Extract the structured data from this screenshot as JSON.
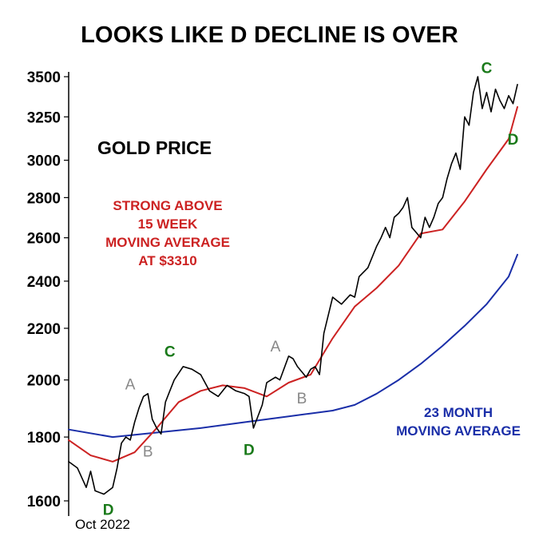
{
  "chart_data": {
    "type": "line",
    "title": "LOOKS LIKE D DECLINE IS OVER",
    "y_scale": "log",
    "ylim": [
      1570,
      3560
    ],
    "y_ticks": [
      "1600",
      "1800",
      "2000",
      "2200",
      "2400",
      "2600",
      "2800",
      "3000",
      "3250",
      "3500"
    ],
    "x_tick_labels": [
      "Oct 2022"
    ],
    "x_start_label": "Oct 2022",
    "annotations": {
      "gold_price": "GOLD PRICE",
      "strong_above": [
        "STRONG ABOVE",
        "15 WEEK",
        "MOVING AVERAGE",
        "AT $3310"
      ],
      "month_avg": [
        "23 MONTH",
        "MOVING AVERAGE"
      ]
    },
    "wave_labels": [
      {
        "text": "D",
        "color": "#1a7a1a",
        "x": 0.09,
        "y": 1575
      },
      {
        "text": "A",
        "color": "#888888",
        "x": 0.14,
        "y": 1985
      },
      {
        "text": "B",
        "color": "#888888",
        "x": 0.18,
        "y": 1755
      },
      {
        "text": "C",
        "color": "#1a7a1a",
        "x": 0.23,
        "y": 2110
      },
      {
        "text": "D",
        "color": "#1a7a1a",
        "x": 0.41,
        "y": 1760
      },
      {
        "text": "A",
        "color": "#888888",
        "x": 0.47,
        "y": 2130
      },
      {
        "text": "B",
        "color": "#888888",
        "x": 0.53,
        "y": 1935
      },
      {
        "text": "C",
        "color": "#1a7a1a",
        "x": 0.95,
        "y": 3560
      },
      {
        "text": "D",
        "color": "#1a7a1a",
        "x": 1.01,
        "y": 3120
      }
    ],
    "series": [
      {
        "color": "#000000",
        "x": [
          0.0,
          0.02,
          0.04,
          0.05,
          0.06,
          0.08,
          0.1,
          0.11,
          0.12,
          0.13,
          0.14,
          0.15,
          0.16,
          0.17,
          0.18,
          0.19,
          0.2,
          0.21,
          0.22,
          0.23,
          0.24,
          0.26,
          0.28,
          0.3,
          0.32,
          0.34,
          0.36,
          0.38,
          0.4,
          0.41,
          0.42,
          0.44,
          0.45,
          0.46,
          0.47,
          0.48,
          0.5,
          0.51,
          0.52,
          0.53,
          0.54,
          0.55,
          0.56,
          0.57,
          0.58,
          0.6,
          0.62,
          0.64,
          0.65,
          0.66,
          0.68,
          0.7,
          0.71,
          0.72,
          0.73,
          0.74,
          0.75,
          0.76,
          0.77,
          0.78,
          0.8,
          0.81,
          0.82,
          0.83,
          0.84,
          0.85,
          0.86,
          0.87,
          0.88,
          0.89,
          0.9,
          0.91,
          0.92,
          0.93,
          0.94,
          0.95,
          0.96,
          0.97,
          0.98,
          0.99,
          1.0,
          1.01,
          1.02
        ],
        "y": [
          1720,
          1700,
          1640,
          1690,
          1630,
          1620,
          1640,
          1700,
          1780,
          1800,
          1790,
          1850,
          1900,
          1940,
          1950,
          1860,
          1830,
          1810,
          1920,
          1960,
          2000,
          2050,
          2040,
          2020,
          1960,
          1940,
          1980,
          1960,
          1950,
          1940,
          1830,
          1910,
          1990,
          2000,
          2010,
          2000,
          2090,
          2080,
          2050,
          2030,
          2010,
          2040,
          2050,
          2020,
          2180,
          2330,
          2300,
          2340,
          2330,
          2420,
          2460,
          2560,
          2600,
          2650,
          2600,
          2700,
          2720,
          2750,
          2800,
          2650,
          2600,
          2700,
          2650,
          2700,
          2770,
          2800,
          2900,
          2980,
          3040,
          2950,
          3250,
          3200,
          3400,
          3500,
          3300,
          3400,
          3280,
          3420,
          3350,
          3300,
          3380,
          3330,
          3450
        ]
      },
      {
        "color": "#cc2222",
        "x": [
          0.0,
          0.05,
          0.1,
          0.15,
          0.2,
          0.25,
          0.3,
          0.35,
          0.4,
          0.45,
          0.5,
          0.55,
          0.6,
          0.65,
          0.7,
          0.75,
          0.8,
          0.85,
          0.9,
          0.95,
          1.0,
          1.02
        ],
        "y": [
          1790,
          1740,
          1720,
          1750,
          1830,
          1920,
          1960,
          1980,
          1970,
          1940,
          1990,
          2020,
          2160,
          2290,
          2370,
          2470,
          2620,
          2640,
          2780,
          2950,
          3120,
          3310
        ]
      },
      {
        "color": "#1a2ea8",
        "x": [
          0.0,
          0.1,
          0.2,
          0.3,
          0.4,
          0.5,
          0.55,
          0.6,
          0.65,
          0.7,
          0.75,
          0.8,
          0.85,
          0.9,
          0.95,
          1.0,
          1.02
        ],
        "y": [
          1825,
          1800,
          1815,
          1830,
          1850,
          1870,
          1880,
          1890,
          1910,
          1950,
          2000,
          2060,
          2130,
          2210,
          2300,
          2420,
          2520
        ]
      }
    ]
  }
}
